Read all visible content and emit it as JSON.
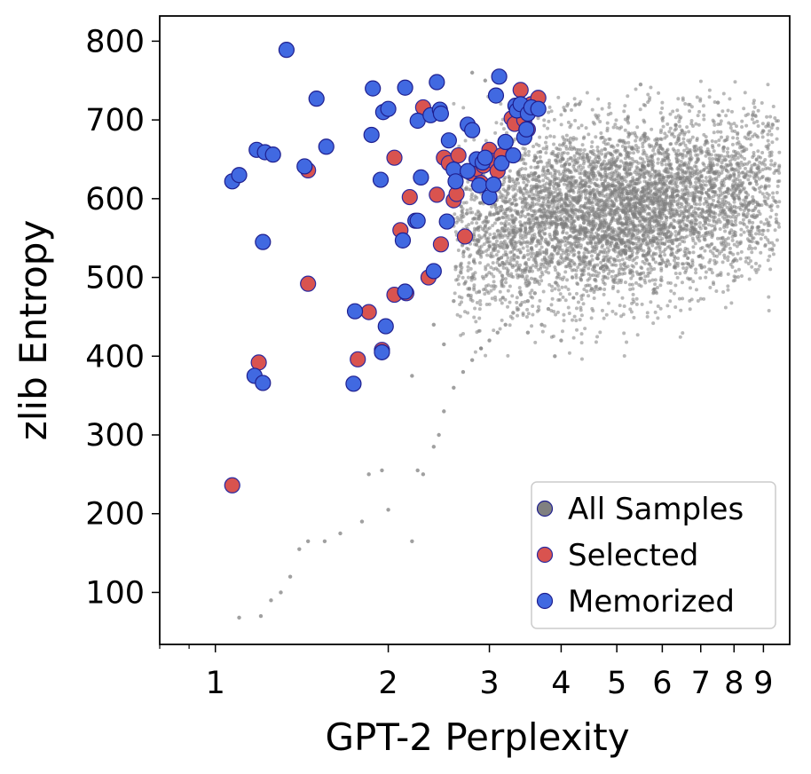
{
  "chart_data": {
    "type": "scatter",
    "xlabel": "GPT-2 Perplexity",
    "ylabel": "zlib Entropy",
    "x_scale": "log",
    "xlim": [
      0.8,
      10
    ],
    "ylim": [
      34,
      832
    ],
    "x_ticks": [
      1,
      2,
      3,
      4,
      5,
      6,
      7,
      8,
      9
    ],
    "y_ticks": [
      100,
      200,
      300,
      400,
      500,
      600,
      700,
      800
    ],
    "grid": false,
    "legend_position": "lower-right",
    "series": [
      {
        "name": "All Samples",
        "color": "#808080",
        "marker": "small dot",
        "cluster": {
          "center_x": 5.0,
          "center_y": 585,
          "spread_x_log": 0.18,
          "spread_y": 55,
          "approx_count": 6000
        },
        "tail_points": [
          [
            1.1,
            68
          ],
          [
            1.2,
            70
          ],
          [
            1.25,
            90
          ],
          [
            1.3,
            100
          ],
          [
            1.35,
            120
          ],
          [
            1.4,
            155
          ],
          [
            1.45,
            165
          ],
          [
            1.55,
            165
          ],
          [
            1.65,
            175
          ],
          [
            1.8,
            190
          ],
          [
            1.85,
            250
          ],
          [
            1.95,
            255
          ],
          [
            2.0,
            205
          ],
          [
            2.2,
            165
          ],
          [
            2.25,
            255
          ],
          [
            2.3,
            250
          ],
          [
            2.4,
            285
          ],
          [
            2.45,
            300
          ],
          [
            2.5,
            330
          ],
          [
            2.6,
            360
          ],
          [
            2.7,
            380
          ],
          [
            2.8,
            395
          ],
          [
            2.9,
            410
          ],
          [
            3.0,
            420
          ],
          [
            3.1,
            430
          ],
          [
            3.2,
            440
          ],
          [
            3.3,
            455
          ],
          [
            3.4,
            465
          ],
          [
            3.5,
            470
          ],
          [
            3.6,
            480
          ],
          [
            3.7,
            440
          ],
          [
            3.8,
            460
          ],
          [
            2.2,
            375
          ],
          [
            2.4,
            440
          ],
          [
            2.6,
            470
          ],
          [
            2.8,
            500
          ],
          [
            3.0,
            540
          ],
          [
            1.8,
            395
          ],
          [
            2.5,
            415
          ],
          [
            3.5,
            430
          ],
          [
            3.9,
            400
          ],
          [
            4.0,
            420
          ],
          [
            2.8,
            760
          ],
          [
            2.95,
            750
          ],
          [
            4.3,
            720
          ],
          [
            5.5,
            745
          ],
          [
            7.5,
            722
          ]
        ]
      },
      {
        "name": "Selected",
        "color": "#d9534f",
        "points": [
          [
            1.07,
            236
          ],
          [
            1.19,
            392
          ],
          [
            1.45,
            636
          ],
          [
            1.45,
            492
          ],
          [
            1.77,
            396
          ],
          [
            1.85,
            456
          ],
          [
            1.95,
            408
          ],
          [
            2.05,
            652
          ],
          [
            2.05,
            478
          ],
          [
            2.1,
            560
          ],
          [
            2.15,
            480
          ],
          [
            2.18,
            602
          ],
          [
            2.3,
            716
          ],
          [
            2.35,
            500
          ],
          [
            2.43,
            605
          ],
          [
            2.47,
            542
          ],
          [
            2.5,
            652
          ],
          [
            2.55,
            645
          ],
          [
            2.6,
            598
          ],
          [
            2.63,
            606
          ],
          [
            2.65,
            655
          ],
          [
            2.72,
            552
          ],
          [
            2.8,
            632
          ],
          [
            2.85,
            638
          ],
          [
            2.9,
            620
          ],
          [
            2.93,
            642
          ],
          [
            3.0,
            662
          ],
          [
            3.05,
            648
          ],
          [
            3.1,
            635
          ],
          [
            3.15,
            655
          ],
          [
            3.2,
            672
          ],
          [
            3.28,
            702
          ],
          [
            3.32,
            695
          ],
          [
            3.38,
            718
          ],
          [
            3.4,
            738
          ],
          [
            3.45,
            700
          ],
          [
            3.5,
            688
          ],
          [
            3.55,
            720
          ],
          [
            3.65,
            728
          ]
        ]
      },
      {
        "name": "Memorized",
        "color": "#4169e1",
        "points": [
          [
            1.07,
            622
          ],
          [
            1.1,
            630
          ],
          [
            1.17,
            375
          ],
          [
            1.18,
            662
          ],
          [
            1.21,
            545
          ],
          [
            1.21,
            366
          ],
          [
            1.22,
            659
          ],
          [
            1.26,
            656
          ],
          [
            1.33,
            789
          ],
          [
            1.43,
            641
          ],
          [
            1.5,
            727
          ],
          [
            1.56,
            666
          ],
          [
            1.75,
            457
          ],
          [
            1.74,
            365
          ],
          [
            1.87,
            681
          ],
          [
            1.88,
            740
          ],
          [
            1.94,
            624
          ],
          [
            1.95,
            405
          ],
          [
            1.96,
            710
          ],
          [
            1.98,
            438
          ],
          [
            2.0,
            714
          ],
          [
            2.12,
            547
          ],
          [
            2.14,
            482
          ],
          [
            2.14,
            741
          ],
          [
            2.23,
            572
          ],
          [
            2.25,
            572
          ],
          [
            2.25,
            699
          ],
          [
            2.28,
            627
          ],
          [
            2.37,
            706
          ],
          [
            2.4,
            508
          ],
          [
            2.43,
            748
          ],
          [
            2.46,
            713
          ],
          [
            2.47,
            708
          ],
          [
            2.53,
            571
          ],
          [
            2.55,
            674
          ],
          [
            2.6,
            637
          ],
          [
            2.62,
            622
          ],
          [
            2.75,
            694
          ],
          [
            2.75,
            635
          ],
          [
            2.8,
            687
          ],
          [
            2.85,
            650
          ],
          [
            2.88,
            617
          ],
          [
            2.92,
            646
          ],
          [
            2.95,
            652
          ],
          [
            3.0,
            602
          ],
          [
            3.05,
            618
          ],
          [
            3.08,
            731
          ],
          [
            3.12,
            755
          ],
          [
            3.15,
            645
          ],
          [
            3.2,
            672
          ],
          [
            3.3,
            655
          ],
          [
            3.33,
            718
          ],
          [
            3.35,
            712
          ],
          [
            3.4,
            720
          ],
          [
            3.45,
            678
          ],
          [
            3.48,
            688
          ],
          [
            3.5,
            708
          ],
          [
            3.55,
            716
          ],
          [
            3.65,
            714
          ]
        ]
      }
    ]
  }
}
